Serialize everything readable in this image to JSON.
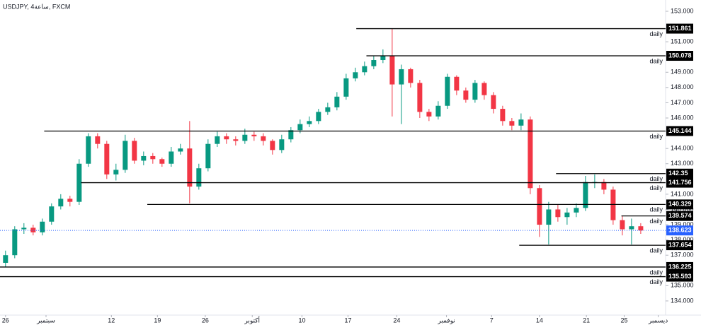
{
  "chart_data": {
    "type": "candlestick",
    "title": "USDJPY, 4ساعة, FXCM",
    "x": [
      0,
      1,
      2,
      3,
      4,
      5,
      6,
      7,
      8,
      9,
      10,
      11,
      12,
      13,
      14,
      15,
      16,
      17,
      18,
      19,
      20,
      21,
      22,
      23,
      24,
      25,
      26,
      27,
      28,
      29,
      30,
      31,
      32,
      33,
      34,
      35,
      36,
      37,
      38,
      39,
      40,
      41,
      42,
      43,
      44,
      45,
      46,
      47,
      48,
      49,
      50,
      51,
      52,
      53,
      54,
      55,
      56,
      57,
      58,
      59,
      60,
      61,
      62,
      63,
      64,
      65,
      66,
      67,
      68,
      69
    ],
    "open": [
      136.5,
      137.0,
      138.7,
      138.8,
      138.5,
      139.2,
      140.2,
      140.7,
      140.5,
      143.0,
      144.8,
      144.3,
      142.3,
      142.6,
      144.5,
      143.2,
      143.5,
      143.3,
      143.0,
      143.8,
      144.0,
      141.5,
      142.7,
      144.3,
      144.8,
      144.6,
      144.5,
      144.9,
      144.8,
      144.5,
      143.9,
      144.6,
      145.2,
      145.6,
      145.8,
      146.4,
      146.7,
      147.4,
      148.6,
      149.0,
      149.4,
      149.8,
      150.1,
      148.2,
      149.2,
      148.3,
      146.4,
      146.1,
      146.8,
      148.7,
      147.8,
      147.2,
      148.3,
      147.5,
      146.6,
      145.8,
      145.5,
      145.9,
      141.4,
      139.0,
      140.0,
      139.5,
      139.8,
      140.1,
      141.8,
      141.8,
      141.3,
      139.3,
      138.7,
      138.9
    ],
    "high": [
      137.3,
      138.9,
      139.1,
      139.0,
      139.4,
      140.4,
      141.0,
      140.9,
      143.3,
      145.0,
      145.0,
      144.5,
      143.0,
      144.9,
      144.7,
      143.8,
      143.7,
      143.4,
      144.1,
      144.3,
      145.8,
      143.0,
      144.6,
      145.1,
      145.0,
      144.8,
      145.3,
      145.1,
      145.0,
      144.6,
      144.9,
      145.4,
      145.9,
      146.1,
      146.6,
      147.0,
      147.7,
      148.9,
      149.3,
      149.7,
      150.1,
      150.5,
      151.86,
      149.5,
      149.3,
      148.5,
      146.6,
      147.1,
      148.9,
      148.8,
      148.0,
      148.5,
      148.4,
      147.7,
      146.8,
      146.0,
      146.3,
      146.1,
      141.6,
      140.5,
      140.3,
      140.1,
      140.4,
      142.2,
      142.3,
      142.0,
      141.5,
      139.6,
      139.4,
      139.1
    ],
    "low": [
      136.2,
      136.8,
      138.4,
      138.3,
      138.3,
      139.0,
      140.0,
      140.2,
      140.3,
      142.8,
      144.0,
      142.0,
      141.9,
      142.4,
      143.0,
      142.9,
      143.0,
      142.8,
      142.8,
      143.6,
      140.4,
      141.3,
      142.5,
      144.1,
      144.3,
      144.2,
      144.3,
      144.5,
      144.2,
      143.6,
      143.7,
      144.4,
      145.0,
      145.4,
      145.6,
      146.2,
      146.5,
      147.2,
      148.4,
      148.8,
      149.2,
      149.6,
      146.1,
      145.6,
      148.0,
      146.0,
      145.8,
      145.9,
      146.6,
      147.5,
      147.0,
      147.0,
      147.2,
      146.3,
      145.5,
      145.2,
      145.2,
      141.0,
      138.2,
      137.7,
      139.2,
      139.0,
      139.5,
      139.9,
      141.4,
      141.0,
      139.0,
      138.3,
      137.7,
      138.4
    ],
    "close": [
      137.0,
      138.7,
      138.8,
      138.5,
      139.2,
      140.2,
      140.7,
      140.5,
      143.0,
      144.8,
      144.3,
      142.3,
      142.6,
      144.5,
      143.2,
      143.5,
      143.3,
      143.0,
      143.8,
      144.0,
      141.5,
      142.7,
      144.3,
      144.8,
      144.6,
      144.5,
      144.9,
      144.8,
      144.5,
      143.9,
      144.6,
      145.2,
      145.6,
      145.8,
      146.4,
      146.7,
      147.4,
      148.6,
      149.0,
      149.4,
      149.8,
      150.1,
      148.2,
      149.2,
      148.3,
      146.4,
      146.1,
      146.8,
      148.7,
      147.8,
      147.2,
      148.3,
      147.5,
      146.6,
      145.8,
      145.5,
      145.9,
      141.4,
      139.0,
      140.0,
      139.5,
      139.8,
      140.1,
      141.8,
      141.8,
      141.3,
      139.3,
      138.7,
      138.9,
      138.623
    ],
    "up_color": "#089981",
    "down_color": "#f23645",
    "xlim": [
      -0.6,
      71.7
    ],
    "ylim": [
      133.07,
      153.74
    ],
    "xticks": [
      {
        "value": 0,
        "label": "26"
      },
      {
        "value": 4.4,
        "label": "سبتمبر"
      },
      {
        "value": 11.5,
        "label": "12"
      },
      {
        "value": 16.5,
        "label": "19"
      },
      {
        "value": 21.7,
        "label": "26"
      },
      {
        "value": 26.8,
        "label": "أكتوبر"
      },
      {
        "value": 32.2,
        "label": "10"
      },
      {
        "value": 37.2,
        "label": "17"
      },
      {
        "value": 42.5,
        "label": "24"
      },
      {
        "value": 47.9,
        "label": "نوفمبر"
      },
      {
        "value": 52.8,
        "label": "7"
      },
      {
        "value": 58,
        "label": "14"
      },
      {
        "value": 63.1,
        "label": "21"
      },
      {
        "value": 67.2,
        "label": "25"
      },
      {
        "value": 70.9,
        "label": "ديسمبر"
      }
    ],
    "yticks": [
      {
        "value": 153,
        "label": "153.000"
      },
      {
        "value": 151,
        "label": "151.000"
      },
      {
        "value": 149,
        "label": "149.000"
      },
      {
        "value": 148,
        "label": "148.000"
      },
      {
        "value": 147,
        "label": "147.000"
      },
      {
        "value": 146,
        "label": "146.000"
      },
      {
        "value": 144,
        "label": "144.000"
      },
      {
        "value": 143,
        "label": "143.000"
      },
      {
        "value": 141,
        "label": "141.000"
      },
      {
        "value": 140,
        "label": "140.000"
      },
      {
        "value": 139,
        "label": "139.000"
      },
      {
        "value": 138,
        "label": "138.000"
      },
      {
        "value": 137,
        "label": "137.000"
      },
      {
        "value": 135,
        "label": "135.000"
      },
      {
        "value": 134,
        "label": "134.000"
      }
    ],
    "levels": [
      {
        "value": 151.861,
        "x_start": 38.1,
        "label": "daily"
      },
      {
        "value": 150.078,
        "x_start": 39.2,
        "label": "daily"
      },
      {
        "value": 145.144,
        "x_start": 4.2,
        "label": "daily"
      },
      {
        "value": 142.35,
        "x_start": 59.8,
        "label": "daily"
      },
      {
        "value": 141.756,
        "x_start": 8.2,
        "label": "daily"
      },
      {
        "value": 140.329,
        "x_start": 15.4,
        "label": "daily"
      },
      {
        "value": 139.574,
        "x_start": 66.9,
        "label": "daily"
      },
      {
        "value": 137.654,
        "x_start": 55.8,
        "label": "daily"
      },
      {
        "value": 136.225,
        "x_start": -0.6,
        "label": "daily"
      },
      {
        "value": 135.593,
        "x_start": -0.6,
        "label": "daily"
      }
    ],
    "level_color": "#000000",
    "current_price": 138.623,
    "current_color": "#2962ff"
  }
}
